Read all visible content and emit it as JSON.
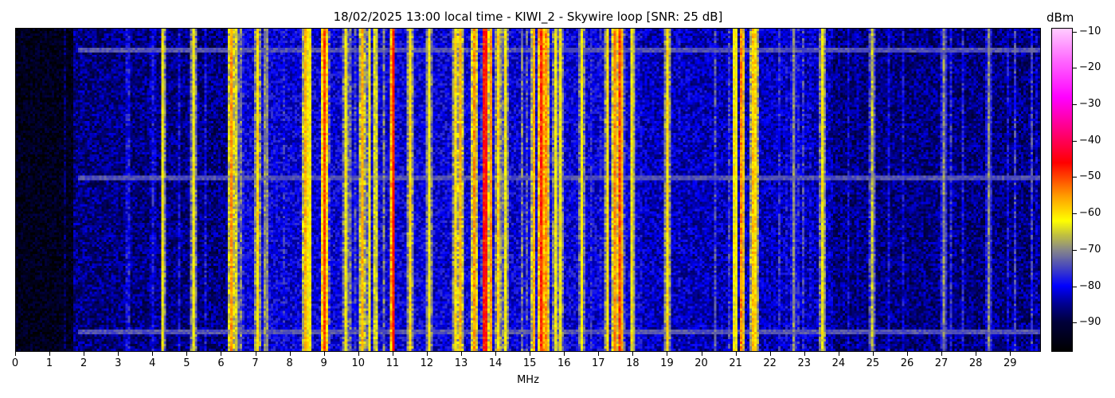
{
  "chart_data": {
    "type": "heatmap",
    "title": "18/02/2025 13:00 local time - KIWI_2 - Skywire loop [SNR: 25 dB]",
    "xlabel": "MHz",
    "ylabel": "",
    "xlim": [
      0,
      29.9
    ],
    "x_ticks": [
      0,
      1,
      2,
      3,
      4,
      5,
      6,
      7,
      8,
      9,
      10,
      11,
      12,
      13,
      14,
      15,
      16,
      17,
      18,
      19,
      20,
      21,
      22,
      23,
      24,
      25,
      26,
      27,
      28,
      29
    ],
    "colorbar": {
      "label": "dBm",
      "range": [
        -98,
        -9
      ],
      "ticks": [
        -10,
        -20,
        -30,
        -40,
        -50,
        -60,
        -70,
        -80,
        -90
      ],
      "colormap": [
        {
          "v": -98,
          "c": "#000000"
        },
        {
          "v": -90,
          "c": "#00003a"
        },
        {
          "v": -85,
          "c": "#000090"
        },
        {
          "v": -80,
          "c": "#0000ff"
        },
        {
          "v": -75,
          "c": "#4444c0"
        },
        {
          "v": -70,
          "c": "#888888"
        },
        {
          "v": -66,
          "c": "#c0c040"
        },
        {
          "v": -62,
          "c": "#ffff00"
        },
        {
          "v": -55,
          "c": "#ff9900"
        },
        {
          "v": -46,
          "c": "#ff0000"
        },
        {
          "v": -37,
          "c": "#ff0080"
        },
        {
          "v": -28,
          "c": "#ff00ff"
        },
        {
          "v": -18,
          "c": "#ff66ff"
        },
        {
          "v": -9,
          "c": "#ffccff"
        }
      ]
    },
    "noise_floor": [
      {
        "from": 0,
        "to": 1.7,
        "dBm": -94
      },
      {
        "from": 1.7,
        "to": 6.2,
        "dBm": -86
      },
      {
        "from": 6.2,
        "to": 18.3,
        "dBm": -81
      },
      {
        "from": 18.3,
        "to": 23.8,
        "dBm": -83
      },
      {
        "from": 23.8,
        "to": 29.9,
        "dBm": -86
      }
    ],
    "signals": [
      {
        "mhz": 4.3,
        "dBm": -62
      },
      {
        "mhz": 5.2,
        "dBm": -62
      },
      {
        "mhz": 6.3,
        "dBm": -55
      },
      {
        "mhz": 6.45,
        "dBm": -65
      },
      {
        "mhz": 7.05,
        "dBm": -60
      },
      {
        "mhz": 7.3,
        "dBm": -70
      },
      {
        "mhz": 8.45,
        "dBm": -57
      },
      {
        "mhz": 8.55,
        "dBm": -62
      },
      {
        "mhz": 9.0,
        "dBm": -50
      },
      {
        "mhz": 9.65,
        "dBm": -62
      },
      {
        "mhz": 10.1,
        "dBm": -57
      },
      {
        "mhz": 10.3,
        "dBm": -62
      },
      {
        "mhz": 10.5,
        "dBm": -65
      },
      {
        "mhz": 11.0,
        "dBm": -47
      },
      {
        "mhz": 11.5,
        "dBm": -60
      },
      {
        "mhz": 12.05,
        "dBm": -62
      },
      {
        "mhz": 12.8,
        "dBm": -60
      },
      {
        "mhz": 12.95,
        "dBm": -57
      },
      {
        "mhz": 13.4,
        "dBm": -55
      },
      {
        "mhz": 13.7,
        "dBm": -47
      },
      {
        "mhz": 13.85,
        "dBm": -55
      },
      {
        "mhz": 14.1,
        "dBm": -60
      },
      {
        "mhz": 14.3,
        "dBm": -62
      },
      {
        "mhz": 15.1,
        "dBm": -57
      },
      {
        "mhz": 15.35,
        "dBm": -48
      },
      {
        "mhz": 15.5,
        "dBm": -55
      },
      {
        "mhz": 15.75,
        "dBm": -62
      },
      {
        "mhz": 15.9,
        "dBm": -62
      },
      {
        "mhz": 16.5,
        "dBm": -62
      },
      {
        "mhz": 17.25,
        "dBm": -60
      },
      {
        "mhz": 17.5,
        "dBm": -55
      },
      {
        "mhz": 17.65,
        "dBm": -50
      },
      {
        "mhz": 18.0,
        "dBm": -62
      },
      {
        "mhz": 19.0,
        "dBm": -60
      },
      {
        "mhz": 21.0,
        "dBm": -62
      },
      {
        "mhz": 21.2,
        "dBm": -54
      },
      {
        "mhz": 21.5,
        "dBm": -58
      },
      {
        "mhz": 21.6,
        "dBm": -60
      },
      {
        "mhz": 22.7,
        "dBm": -70
      },
      {
        "mhz": 23.55,
        "dBm": -62
      },
      {
        "mhz": 25.0,
        "dBm": -66
      },
      {
        "mhz": 27.1,
        "dBm": -70
      },
      {
        "mhz": 28.4,
        "dBm": -70
      }
    ],
    "grid": false
  }
}
